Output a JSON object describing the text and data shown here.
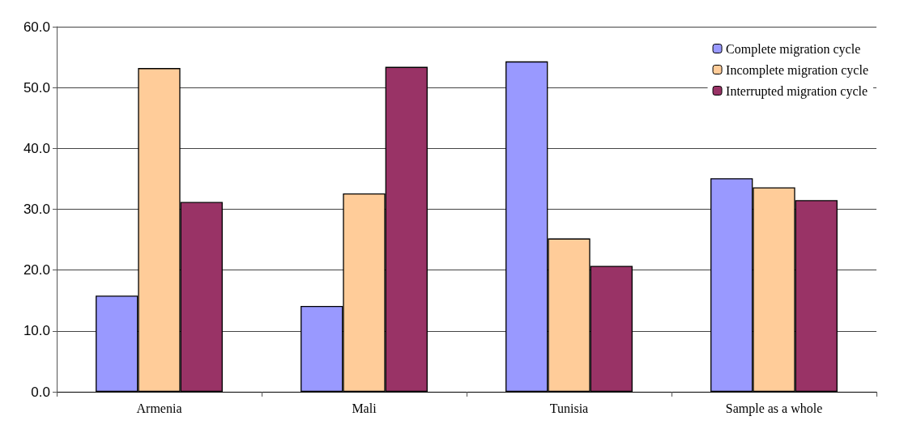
{
  "chart_data": {
    "type": "bar",
    "categories": [
      "Armenia",
      "Mali",
      "Tunisia",
      "Sample as a whole"
    ],
    "series": [
      {
        "name": "Complete migration cycle",
        "color": "#9999ff",
        "values": [
          15.8,
          14.1,
          54.3,
          35.1
        ]
      },
      {
        "name": "Incomplete migration cycle",
        "color": "#ffcc99",
        "values": [
          53.2,
          32.6,
          25.2,
          33.6
        ]
      },
      {
        "name": "Interrupted migration cycle",
        "color": "#993366",
        "values": [
          31.2,
          53.4,
          20.7,
          31.5
        ]
      }
    ],
    "ylim": [
      0,
      60
    ],
    "yticks": [
      {
        "value": 0,
        "label": "0.0"
      },
      {
        "value": 10,
        "label": "10.0"
      },
      {
        "value": 20,
        "label": "20.0"
      },
      {
        "value": 30,
        "label": "30.0"
      },
      {
        "value": 40,
        "label": "40.0"
      },
      {
        "value": 50,
        "label": "50.0"
      },
      {
        "value": 60,
        "label": "60.0"
      }
    ],
    "grid": "y",
    "legend": "top right"
  }
}
